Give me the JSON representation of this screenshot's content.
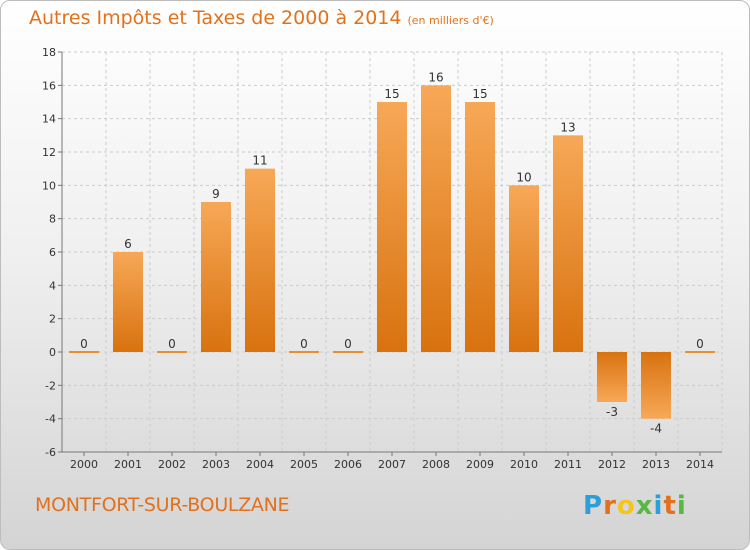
{
  "chart_data": {
    "type": "bar",
    "title": "Autres Impôts et Taxes de 2000 à 2014",
    "subtitle": "(en milliers d'€)",
    "xlabel": "",
    "ylabel": "",
    "categories": [
      "2000",
      "2001",
      "2002",
      "2003",
      "2004",
      "2005",
      "2006",
      "2007",
      "2008",
      "2009",
      "2010",
      "2011",
      "2012",
      "2013",
      "2014"
    ],
    "values": [
      0,
      6,
      0,
      9,
      11,
      0,
      0,
      15,
      16,
      15,
      10,
      13,
      -3,
      -4,
      0
    ],
    "ylim": [
      -6,
      18
    ],
    "yticks": [
      -6,
      -4,
      -2,
      0,
      2,
      4,
      6,
      8,
      10,
      12,
      14,
      16,
      18
    ],
    "grid": true,
    "bar_color": "#e07b1c",
    "bar_color_light": "#f7a857"
  },
  "footer": {
    "commune": "MONTFORT-SUR-BOULZANE",
    "logo": {
      "letters": [
        "P",
        "r",
        "o",
        "x",
        "i",
        "t",
        "i"
      ],
      "colors": [
        "#2d9fd8",
        "#e2711d",
        "#f2c61f",
        "#57b846",
        "#2d9fd8",
        "#e2711d",
        "#57b846"
      ]
    }
  },
  "colors": {
    "title": "#e2711d",
    "grid": "#cccccc"
  }
}
